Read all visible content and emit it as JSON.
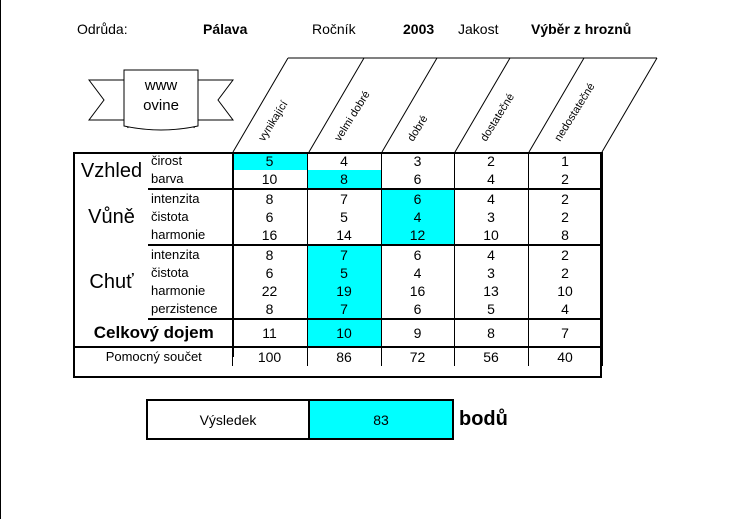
{
  "header": {
    "variety_label": "Odrůda:",
    "variety": "Pálava",
    "year_label": "Ročník",
    "year": "2003",
    "quality_label": "Jakost",
    "quality": "Výběr z hroznů"
  },
  "logo": {
    "line1": "www",
    "line2": "ovine"
  },
  "columns": [
    "vynikající",
    "velmi dobré",
    "dobré",
    "dostatečné",
    "nedostatečné"
  ],
  "groups": [
    {
      "name": "Vzhled",
      "rows": [
        {
          "label": "čirost",
          "values": [
            "5",
            "4",
            "3",
            "2",
            "1"
          ],
          "selected": 0
        },
        {
          "label": "barva",
          "values": [
            "10",
            "8",
            "6",
            "4",
            "2"
          ],
          "selected": 1
        }
      ]
    },
    {
      "name": "Vůně",
      "rows": [
        {
          "label": "intenzita",
          "values": [
            "8",
            "7",
            "6",
            "4",
            "2"
          ],
          "selected": 2
        },
        {
          "label": "čistota",
          "values": [
            "6",
            "5",
            "4",
            "3",
            "2"
          ],
          "selected": 2
        },
        {
          "label": "harmonie",
          "values": [
            "16",
            "14",
            "12",
            "10",
            "8"
          ],
          "selected": 2
        }
      ]
    },
    {
      "name": "Chuť",
      "rows": [
        {
          "label": "intenzita",
          "values": [
            "8",
            "7",
            "6",
            "4",
            "2"
          ],
          "selected": 1
        },
        {
          "label": "čistota",
          "values": [
            "6",
            "5",
            "4",
            "3",
            "2"
          ],
          "selected": 1
        },
        {
          "label": "harmonie",
          "values": [
            "22",
            "19",
            "16",
            "13",
            "10"
          ],
          "selected": 1
        },
        {
          "label": "perzistence",
          "values": [
            "8",
            "7",
            "6",
            "5",
            "4"
          ],
          "selected": 1
        }
      ]
    }
  ],
  "overall": {
    "label": "Celkový dojem",
    "values": [
      "11",
      "10",
      "9",
      "8",
      "7"
    ],
    "selected": 1
  },
  "helper": {
    "label": "Pomocný součet",
    "values": [
      "100",
      "86",
      "72",
      "56",
      "40"
    ]
  },
  "result": {
    "label": "Výsledek",
    "value": "83",
    "units": "bodů"
  },
  "colors": {
    "highlight": "#00ffff"
  }
}
